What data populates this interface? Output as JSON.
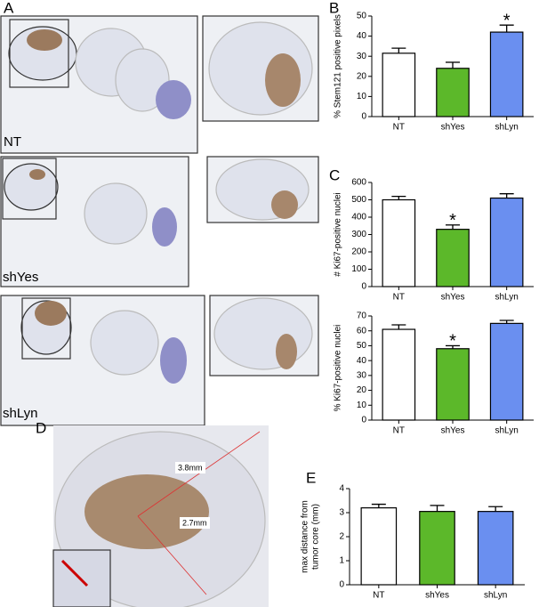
{
  "figure": {
    "panels": [
      "A",
      "B",
      "C",
      "D",
      "E"
    ],
    "image_labels": [
      "NT",
      "shYes",
      "shLyn"
    ],
    "measurements": [
      "3.8mm",
      "2.7mm"
    ]
  },
  "chart_data": [
    {
      "type": "bar",
      "ylabel": [
        "% Stem121 positive pixels"
      ],
      "categories": [
        "NT",
        "shYes",
        "shLyn"
      ],
      "values": [
        31.5,
        24,
        42
      ],
      "errors": [
        2.5,
        3,
        3.5
      ],
      "colors": [
        "#ffffff",
        "#5cb82a",
        "#6a8ff0"
      ],
      "value_annotations": [
        null,
        null,
        "*"
      ],
      "ylim": [
        0,
        50
      ],
      "yticks": [
        0,
        10,
        20,
        30,
        40,
        50
      ]
    },
    {
      "type": "bar",
      "ylabel": [
        "# Ki67-positive nuclei"
      ],
      "categories": [
        "NT",
        "shYes",
        "shLyn"
      ],
      "values": [
        500,
        330,
        510
      ],
      "errors": [
        20,
        25,
        25
      ],
      "colors": [
        "#ffffff",
        "#5cb82a",
        "#6a8ff0"
      ],
      "value_annotations": [
        null,
        "*",
        null
      ],
      "ylim": [
        0,
        600
      ],
      "yticks": [
        0,
        100,
        200,
        300,
        400,
        500,
        600
      ]
    },
    {
      "type": "bar",
      "ylabel": [
        "% Ki67-positive nuclei"
      ],
      "categories": [
        "NT",
        "shYes",
        "shLyn"
      ],
      "values": [
        61,
        48,
        65
      ],
      "errors": [
        3,
        2,
        2
      ],
      "colors": [
        "#ffffff",
        "#5cb82a",
        "#6a8ff0"
      ],
      "value_annotations": [
        null,
        "*",
        null
      ],
      "ylim": [
        0,
        70
      ],
      "yticks": [
        0,
        10,
        20,
        30,
        40,
        50,
        60,
        70
      ]
    },
    {
      "type": "bar",
      "ylabel": [
        "max distance from",
        "tumor core  (mm)"
      ],
      "categories": [
        "NT",
        "shYes",
        "shLyn"
      ],
      "values": [
        3.2,
        3.05,
        3.05
      ],
      "errors": [
        0.15,
        0.25,
        0.2
      ],
      "colors": [
        "#ffffff",
        "#5cb82a",
        "#6a8ff0"
      ],
      "value_annotations": [
        null,
        null,
        null
      ],
      "ylim": [
        0,
        4
      ],
      "yticks": [
        0,
        1,
        2,
        3,
        4
      ]
    }
  ]
}
